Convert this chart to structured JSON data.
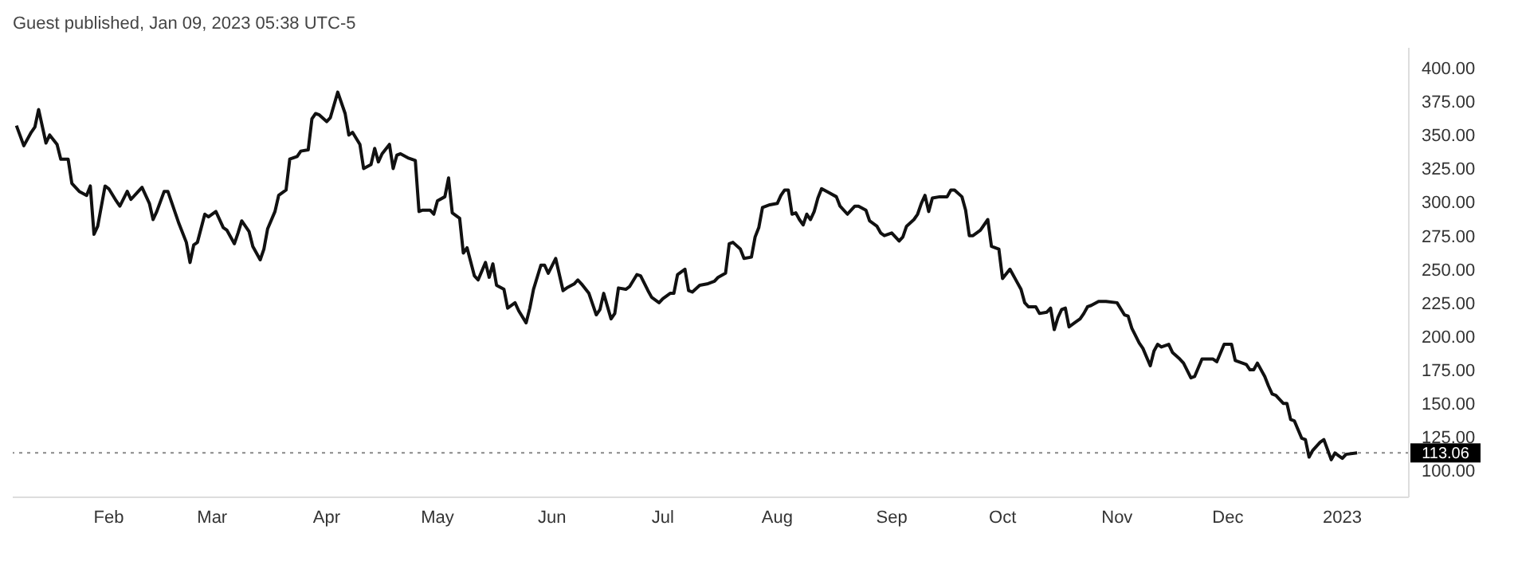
{
  "chart_data": {
    "type": "line",
    "annotations": [
      "Guest published, Jan 09, 2023 05:38 UTC-5"
    ],
    "x": [
      "2022-01-07",
      "2022-01-09",
      "2022-01-11",
      "2022-01-12",
      "2022-01-13",
      "2022-01-15",
      "2022-01-16",
      "2022-01-18",
      "2022-01-19",
      "2022-01-21",
      "2022-01-22",
      "2022-01-24",
      "2022-01-26",
      "2022-01-27",
      "2022-01-28",
      "2022-01-29",
      "2022-01-31",
      "2022-02-01",
      "2022-02-03",
      "2022-02-04",
      "2022-02-06",
      "2022-02-07",
      "2022-02-09",
      "2022-02-10",
      "2022-02-12",
      "2022-02-13",
      "2022-02-14",
      "2022-02-16",
      "2022-02-17",
      "2022-02-19",
      "2022-02-20",
      "2022-02-22",
      "2022-02-23",
      "2022-02-24",
      "2022-02-25",
      "2022-02-27",
      "2022-02-28",
      "2022-03-02",
      "2022-03-04",
      "2022-03-05",
      "2022-03-07",
      "2022-03-08",
      "2022-03-09",
      "2022-03-11",
      "2022-03-12",
      "2022-03-14",
      "2022-03-15",
      "2022-03-16",
      "2022-03-18",
      "2022-03-19",
      "2022-03-21",
      "2022-03-22",
      "2022-03-24",
      "2022-03-25",
      "2022-03-27",
      "2022-03-28",
      "2022-03-29",
      "2022-03-30",
      "2022-04-01",
      "2022-04-02",
      "2022-04-04",
      "2022-04-06",
      "2022-04-07",
      "2022-04-08",
      "2022-04-10",
      "2022-04-11",
      "2022-04-13",
      "2022-04-14",
      "2022-04-15",
      "2022-04-16",
      "2022-04-18",
      "2022-04-19",
      "2022-04-20",
      "2022-04-21",
      "2022-04-23",
      "2022-04-25",
      "2022-04-26",
      "2022-04-27",
      "2022-04-29",
      "2022-04-30",
      "2022-05-01",
      "2022-05-03",
      "2022-05-04",
      "2022-05-05",
      "2022-05-07",
      "2022-05-08",
      "2022-05-09",
      "2022-05-11",
      "2022-05-12",
      "2022-05-14",
      "2022-05-15",
      "2022-05-16",
      "2022-05-17",
      "2022-05-19",
      "2022-05-20",
      "2022-05-22",
      "2022-05-23",
      "2022-05-25",
      "2022-05-26",
      "2022-05-27",
      "2022-05-29",
      "2022-05-30",
      "2022-05-31",
      "2022-06-02",
      "2022-06-04",
      "2022-06-05",
      "2022-06-07",
      "2022-06-08",
      "2022-06-09",
      "2022-06-11",
      "2022-06-13",
      "2022-06-14",
      "2022-06-15",
      "2022-06-17",
      "2022-06-18",
      "2022-06-19",
      "2022-06-21",
      "2022-06-22",
      "2022-06-24",
      "2022-06-25",
      "2022-06-27",
      "2022-06-28",
      "2022-06-30",
      "2022-07-01",
      "2022-07-03",
      "2022-07-04",
      "2022-07-05",
      "2022-07-07",
      "2022-07-08",
      "2022-07-09",
      "2022-07-11",
      "2022-07-13",
      "2022-07-15",
      "2022-07-16",
      "2022-07-18",
      "2022-07-19",
      "2022-07-20",
      "2022-07-22",
      "2022-07-23",
      "2022-07-25",
      "2022-07-26",
      "2022-07-27",
      "2022-07-28",
      "2022-07-30",
      "2022-08-01",
      "2022-08-02",
      "2022-08-03",
      "2022-08-04",
      "2022-08-05",
      "2022-08-06",
      "2022-08-07",
      "2022-08-08",
      "2022-08-09",
      "2022-08-10",
      "2022-08-11",
      "2022-08-12",
      "2022-08-13",
      "2022-08-15",
      "2022-08-17",
      "2022-08-18",
      "2022-08-20",
      "2022-08-22",
      "2022-08-23",
      "2022-08-25",
      "2022-08-26",
      "2022-08-28",
      "2022-08-29",
      "2022-08-30",
      "2022-09-01",
      "2022-09-03",
      "2022-09-04",
      "2022-09-05",
      "2022-09-07",
      "2022-09-08",
      "2022-09-09",
      "2022-09-10",
      "2022-09-11",
      "2022-09-12",
      "2022-09-14",
      "2022-09-16",
      "2022-09-17",
      "2022-09-18",
      "2022-09-20",
      "2022-09-21",
      "2022-09-22",
      "2022-09-23",
      "2022-09-25",
      "2022-09-27",
      "2022-09-28",
      "2022-09-30",
      "2022-10-01",
      "2022-10-03",
      "2022-10-05",
      "2022-10-06",
      "2022-10-07",
      "2022-10-08",
      "2022-10-10",
      "2022-10-11",
      "2022-10-13",
      "2022-10-14",
      "2022-10-15",
      "2022-10-16",
      "2022-10-17",
      "2022-10-18",
      "2022-10-19",
      "2022-10-21",
      "2022-10-22",
      "2022-10-23",
      "2022-10-24",
      "2022-10-25",
      "2022-10-27",
      "2022-10-29",
      "2022-11-01",
      "2022-11-03",
      "2022-11-04",
      "2022-11-05",
      "2022-11-07",
      "2022-11-08",
      "2022-11-10",
      "2022-11-11",
      "2022-11-12",
      "2022-11-13",
      "2022-11-15",
      "2022-11-16",
      "2022-11-18",
      "2022-11-19",
      "2022-11-21",
      "2022-11-22",
      "2022-11-24",
      "2022-11-26",
      "2022-11-27",
      "2022-11-28",
      "2022-11-30",
      "2022-12-02",
      "2022-12-03",
      "2022-12-06",
      "2022-12-07",
      "2022-12-08",
      "2022-12-09",
      "2022-12-11",
      "2022-12-12",
      "2022-12-13",
      "2022-12-14",
      "2022-12-16",
      "2022-12-17",
      "2022-12-18",
      "2022-12-19",
      "2022-12-21",
      "2022-12-22",
      "2022-12-23",
      "2022-12-24",
      "2022-12-26",
      "2022-12-27",
      "2022-12-29",
      "2022-12-30",
      "2022-12-31",
      "2023-01-01",
      "2023-01-02",
      "2023-01-05"
    ],
    "series": [
      {
        "color": "#111111",
        "values": [
          357,
          342,
          352,
          356,
          369,
          344,
          350,
          343,
          332,
          332,
          314,
          308,
          305,
          312,
          276,
          282,
          312,
          310,
          301,
          297,
          308,
          302,
          308,
          311,
          299,
          287,
          293,
          308,
          308,
          292,
          284,
          270,
          255,
          268,
          270,
          291,
          289,
          293,
          281,
          279,
          269,
          277,
          286,
          278,
          267,
          257,
          265,
          280,
          293,
          305,
          309,
          332,
          334,
          338,
          339,
          362,
          366,
          365,
          360,
          363,
          382,
          366,
          350,
          352,
          343,
          325,
          328,
          340,
          330,
          336,
          343,
          325,
          335,
          336,
          333,
          331,
          293,
          294,
          294,
          291,
          301,
          304,
          318,
          292,
          288,
          262,
          266,
          245,
          242,
          255,
          244,
          254,
          238,
          235,
          221,
          225,
          219,
          210,
          221,
          235,
          253,
          253,
          247,
          258,
          234,
          236,
          239,
          242,
          239,
          232,
          216,
          220,
          232,
          213,
          217,
          236,
          235,
          237,
          246,
          245,
          234,
          229,
          225,
          228,
          232,
          232,
          246,
          250,
          234,
          233,
          238,
          239,
          241,
          244,
          247,
          269,
          270,
          265,
          258,
          259,
          274,
          281,
          296,
          298,
          299,
          305,
          309,
          309,
          291,
          292,
          287,
          283,
          291,
          287,
          293,
          303,
          310,
          307,
          304,
          297,
          291,
          297,
          297,
          294,
          286,
          282,
          277,
          275,
          277,
          271,
          274,
          282,
          287,
          291,
          299,
          305,
          293,
          303,
          304,
          304,
          309,
          309,
          304,
          294,
          275,
          275,
          279,
          287,
          267,
          265,
          243,
          250,
          240,
          235,
          225,
          222,
          222,
          217,
          218,
          221,
          205,
          214,
          220,
          221,
          207,
          211,
          213,
          217,
          222,
          223,
          226,
          226,
          225,
          216,
          215,
          206,
          195,
          191,
          178,
          189,
          194,
          192,
          194,
          188,
          183,
          180,
          169,
          170,
          183,
          183,
          183,
          181,
          194,
          194,
          182,
          179,
          175,
          175,
          180,
          170,
          163,
          157,
          156,
          150,
          150,
          138,
          137,
          124,
          123,
          110,
          115,
          121,
          123,
          108,
          113,
          111,
          109,
          112,
          113.06
        ]
      }
    ],
    "xlim": [
      "2022-01-06",
      "2023-01-19"
    ],
    "xticks": [
      {
        "value": "2022-02-01",
        "label": "Feb"
      },
      {
        "value": "2022-03-01",
        "label": "Mar"
      },
      {
        "value": "2022-04-01",
        "label": "Apr"
      },
      {
        "value": "2022-05-01",
        "label": "May"
      },
      {
        "value": "2022-06-01",
        "label": "Jun"
      },
      {
        "value": "2022-07-01",
        "label": "Jul"
      },
      {
        "value": "2022-08-01",
        "label": "Aug"
      },
      {
        "value": "2022-09-01",
        "label": "Sep"
      },
      {
        "value": "2022-10-01",
        "label": "Oct"
      },
      {
        "value": "2022-11-01",
        "label": "Nov"
      },
      {
        "value": "2022-12-01",
        "label": "Dec"
      },
      {
        "value": "2023-01-01",
        "label": "2023"
      }
    ],
    "ylim": [
      80,
      415
    ],
    "yticks": [
      {
        "value": 100,
        "label": "100.00"
      },
      {
        "value": 125,
        "label": "125.00"
      },
      {
        "value": 150,
        "label": "150.00"
      },
      {
        "value": 175,
        "label": "175.00"
      },
      {
        "value": 200,
        "label": "200.00"
      },
      {
        "value": 225,
        "label": "225.00"
      },
      {
        "value": 250,
        "label": "250.00"
      },
      {
        "value": 275,
        "label": "275.00"
      },
      {
        "value": 300,
        "label": "300.00"
      },
      {
        "value": 325,
        "label": "325.00"
      },
      {
        "value": 350,
        "label": "350.00"
      },
      {
        "value": 375,
        "label": "375.00"
      },
      {
        "value": 400,
        "label": "400.00"
      }
    ],
    "ref_lines": [
      {
        "axis": "y",
        "value": 113.06,
        "label": "113.06",
        "color": "#888888",
        "line_style": "dotted"
      }
    ],
    "grid": false,
    "legend": false,
    "marker": "none",
    "line_style": "solid"
  }
}
